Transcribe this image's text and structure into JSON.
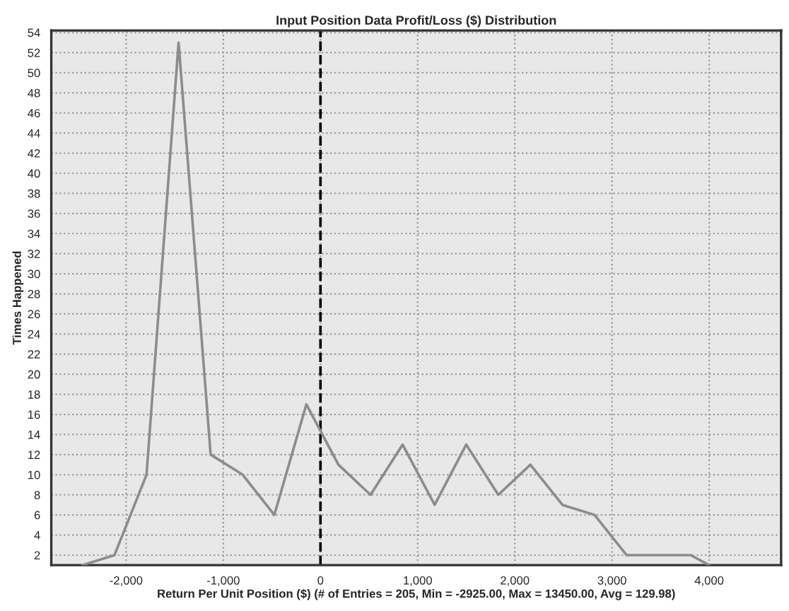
{
  "chart_data": {
    "type": "line",
    "title": "Input Position Data Profit/Loss ($) Distribution",
    "xlabel": "Return Per Unit Position ($) (# of Entries = 205, Min = -2925.00, Max = 13450.00, Avg = 129.98)",
    "ylabel": "Times Happened",
    "x": [
      -2450,
      -2120,
      -1790,
      -1460,
      -1130,
      -800,
      -475,
      -145,
      185,
      515,
      845,
      1175,
      1500,
      1830,
      2160,
      2490,
      2820,
      3150,
      3480,
      3810,
      4000
    ],
    "series": [
      {
        "color": "#8c8c8c",
        "values": [
          1,
          2,
          10,
          53,
          12,
          10,
          6,
          17,
          11,
          8,
          13,
          7,
          13,
          8,
          11,
          7,
          6,
          2,
          2,
          2,
          1
        ]
      }
    ],
    "xlim": [
      -2770,
      4740
    ],
    "ylim": [
      1,
      54.2
    ],
    "xticks": [
      {
        "value": -2000,
        "label": "-2,000"
      },
      {
        "value": -1000,
        "label": "-1,000"
      },
      0,
      {
        "value": 1000,
        "label": "1,000"
      },
      {
        "value": 2000,
        "label": "2,000"
      },
      {
        "value": 3000,
        "label": "3,000"
      },
      {
        "value": 4000,
        "label": "4,000"
      }
    ],
    "yticks": [
      2,
      4,
      6,
      8,
      10,
      12,
      14,
      16,
      18,
      20,
      22,
      24,
      26,
      28,
      30,
      32,
      34,
      36,
      38,
      40,
      42,
      44,
      46,
      48,
      50,
      52,
      54
    ],
    "ref_lines": [
      {
        "axis": "x",
        "value": 0,
        "color": "#000000",
        "line_style": "dashed"
      }
    ],
    "grid": true,
    "line_style": "solid",
    "marker": "none"
  }
}
